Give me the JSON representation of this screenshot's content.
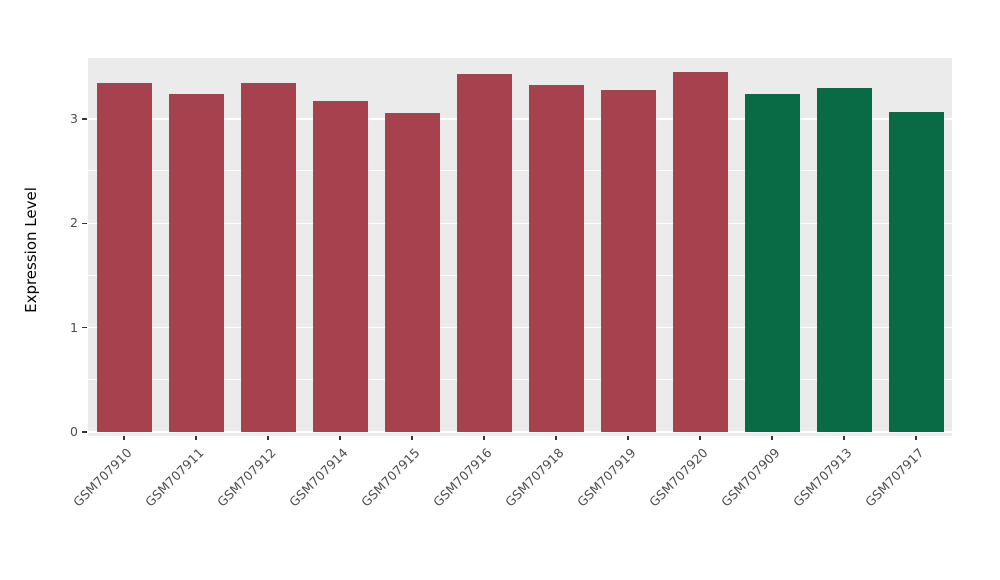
{
  "figure": {
    "background": "#FFFFFF",
    "panel_background": "#EBEBEB",
    "grid_color": "#FFFFFF"
  },
  "chart_data": {
    "type": "bar",
    "title": "",
    "xlabel": "",
    "ylabel": "Expression Level",
    "legend_position": "none",
    "grid": "on",
    "ylim": [
      0,
      3.585
    ],
    "yticks": [
      0,
      1,
      2,
      3
    ],
    "minor_ticks": [
      0.5,
      1.5,
      2.5
    ],
    "categories": [
      "GSM707910",
      "GSM707911",
      "GSM707912",
      "GSM707914",
      "GSM707915",
      "GSM707916",
      "GSM707918",
      "GSM707919",
      "GSM707920",
      "GSM707909",
      "GSM707913",
      "GSM707917"
    ],
    "values": [
      3.35,
      3.24,
      3.35,
      3.17,
      3.06,
      3.43,
      3.33,
      3.28,
      3.45,
      3.24,
      3.3,
      3.07
    ],
    "bar_colors": [
      "#A6424E",
      "#A6424E",
      "#A6424E",
      "#A6424E",
      "#A6424E",
      "#A6424E",
      "#A6424E",
      "#A6424E",
      "#A6424E",
      "#086B46",
      "#086B46",
      "#086B46"
    ],
    "group_colors": {
      "group1": "#A6424E",
      "group2": "#086B46"
    }
  }
}
